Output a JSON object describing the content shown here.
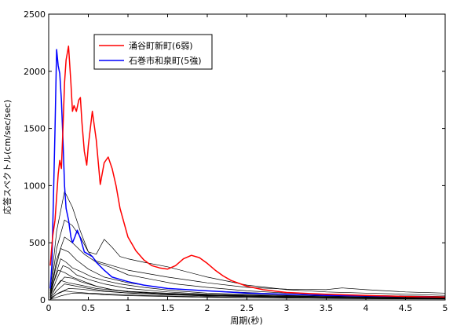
{
  "chart_data": {
    "type": "line",
    "xlabel": "周期(秒)",
    "ylabel": "応答スペクトル(cm/sec/sec)",
    "xlim": [
      0,
      5
    ],
    "ylim": [
      0,
      2500
    ],
    "xticks": [
      0,
      0.5,
      1,
      1.5,
      2,
      2.5,
      3,
      3.5,
      4,
      4.5,
      5
    ],
    "xtick_labels": [
      "0",
      "0.5",
      "1",
      "1.5",
      "2",
      "2.5",
      "3",
      "3.5",
      "4",
      "4.5",
      "5"
    ],
    "yticks": [
      0,
      500,
      1000,
      1500,
      2000,
      2500
    ],
    "ytick_labels": [
      "0",
      "500",
      "1000",
      "1500",
      "2000",
      "2500"
    ],
    "legend_position": "top-left",
    "grid": false,
    "series": [
      {
        "name": "涌谷町新町(6弱)",
        "color": "#ff0000",
        "x": [
          0.02,
          0.05,
          0.08,
          0.1,
          0.12,
          0.14,
          0.16,
          0.18,
          0.2,
          0.22,
          0.25,
          0.28,
          0.3,
          0.32,
          0.35,
          0.38,
          0.4,
          0.42,
          0.45,
          0.48,
          0.5,
          0.55,
          0.6,
          0.65,
          0.7,
          0.75,
          0.8,
          0.85,
          0.9,
          1.0,
          1.1,
          1.2,
          1.3,
          1.4,
          1.5,
          1.6,
          1.7,
          1.8,
          1.9,
          2.0,
          2.1,
          2.2,
          2.3,
          2.5,
          2.7,
          3.0,
          3.5,
          4.0,
          4.5,
          5.0
        ],
        "y": [
          300,
          550,
          700,
          900,
          1100,
          1220,
          1150,
          1500,
          1900,
          2100,
          2220,
          1900,
          1650,
          1700,
          1650,
          1750,
          1770,
          1550,
          1300,
          1180,
          1350,
          1650,
          1400,
          1010,
          1200,
          1250,
          1150,
          1000,
          800,
          550,
          430,
          350,
          300,
          280,
          270,
          300,
          360,
          390,
          370,
          320,
          260,
          210,
          170,
          120,
          90,
          65,
          50,
          40,
          30,
          25
        ]
      },
      {
        "name": "石巻市和泉町(5強)",
        "color": "#0000ff",
        "x": [
          0.02,
          0.04,
          0.06,
          0.08,
          0.1,
          0.12,
          0.14,
          0.16,
          0.18,
          0.2,
          0.22,
          0.25,
          0.28,
          0.3,
          0.33,
          0.36,
          0.4,
          0.45,
          0.5,
          0.55,
          0.6,
          0.7,
          0.8,
          0.9,
          1.0,
          1.2,
          1.5,
          2.0,
          2.5,
          3.0,
          3.5,
          4.0,
          4.5,
          5.0
        ],
        "y": [
          100,
          300,
          900,
          1500,
          2190,
          2050,
          1980,
          1750,
          1400,
          1000,
          800,
          700,
          550,
          500,
          550,
          610,
          540,
          420,
          400,
          380,
          330,
          260,
          200,
          180,
          160,
          130,
          100,
          80,
          60,
          50,
          40,
          35,
          30,
          25
        ]
      },
      {
        "name": "",
        "color": "#000000",
        "x": [
          0.02,
          0.1,
          0.2,
          0.3,
          0.4,
          0.5,
          0.6,
          0.7,
          0.8,
          0.9,
          1.0,
          1.2,
          1.5,
          2.0,
          2.5,
          3.0,
          3.5,
          4.0,
          4.5,
          5.0
        ],
        "y": [
          80,
          600,
          950,
          810,
          600,
          420,
          400,
          530,
          460,
          380,
          360,
          330,
          290,
          200,
          130,
          90,
          70,
          60,
          50,
          40
        ]
      },
      {
        "name": "",
        "color": "#000000",
        "x": [
          0.02,
          0.1,
          0.2,
          0.3,
          0.4,
          0.5,
          0.6,
          0.8,
          1.0,
          1.5,
          2.0,
          2.5,
          3.0,
          3.5,
          3.7,
          4.0,
          4.5,
          5.0
        ],
        "y": [
          60,
          450,
          700,
          650,
          550,
          420,
          340,
          300,
          260,
          200,
          150,
          110,
          95,
          90,
          105,
          90,
          70,
          60
        ]
      },
      {
        "name": "",
        "color": "#000000",
        "x": [
          0.02,
          0.1,
          0.2,
          0.3,
          0.45,
          0.6,
          0.8,
          1.0,
          1.3,
          1.6,
          2.0,
          2.5,
          3.0,
          4.0,
          5.0
        ],
        "y": [
          50,
          350,
          550,
          500,
          400,
          330,
          280,
          220,
          180,
          140,
          110,
          80,
          60,
          40,
          30
        ]
      },
      {
        "name": "",
        "color": "#000000",
        "x": [
          0.02,
          0.08,
          0.15,
          0.25,
          0.35,
          0.5,
          0.7,
          1.0,
          1.5,
          2.0,
          3.0,
          4.0,
          5.0
        ],
        "y": [
          40,
          250,
          450,
          420,
          350,
          270,
          200,
          150,
          100,
          80,
          50,
          35,
          25
        ]
      },
      {
        "name": "",
        "color": "#000000",
        "x": [
          0.02,
          0.08,
          0.15,
          0.22,
          0.3,
          0.4,
          0.55,
          0.7,
          0.9,
          1.2,
          1.6,
          2.0,
          3.0,
          4.0,
          5.0
        ],
        "y": [
          30,
          200,
          360,
          330,
          280,
          250,
          200,
          170,
          140,
          110,
          80,
          60,
          40,
          30,
          20
        ]
      },
      {
        "name": "",
        "color": "#000000",
        "x": [
          0.02,
          0.1,
          0.18,
          0.25,
          0.35,
          0.5,
          0.7,
          1.0,
          1.5,
          2.0,
          3.0,
          4.0,
          5.0
        ],
        "y": [
          30,
          180,
          300,
          280,
          220,
          180,
          140,
          100,
          70,
          50,
          35,
          25,
          20
        ]
      },
      {
        "name": "",
        "color": "#000000",
        "x": [
          0.02,
          0.06,
          0.12,
          0.2,
          0.3,
          0.45,
          0.6,
          0.8,
          1.0,
          1.5,
          2.0,
          3.0,
          4.0,
          5.0
        ],
        "y": [
          20,
          150,
          260,
          240,
          200,
          160,
          120,
          90,
          70,
          50,
          40,
          30,
          20,
          15
        ]
      },
      {
        "name": "",
        "color": "#000000",
        "x": [
          0.02,
          0.1,
          0.2,
          0.3,
          0.4,
          0.6,
          0.8,
          1.0,
          1.5,
          2.0,
          3.0,
          4.0,
          5.0
        ],
        "y": [
          20,
          120,
          200,
          190,
          160,
          120,
          90,
          75,
          60,
          45,
          30,
          20,
          15
        ]
      },
      {
        "name": "",
        "color": "#000000",
        "x": [
          0.02,
          0.08,
          0.15,
          0.25,
          0.4,
          0.6,
          0.9,
          1.3,
          1.8,
          2.5,
          3.5,
          5.0
        ],
        "y": [
          15,
          100,
          170,
          150,
          130,
          100,
          80,
          60,
          45,
          35,
          25,
          15
        ]
      },
      {
        "name": "",
        "color": "#000000",
        "x": [
          0.02,
          0.1,
          0.2,
          0.35,
          0.5,
          0.7,
          1.0,
          1.5,
          2.0,
          3.0,
          4.0,
          5.0
        ],
        "y": [
          10,
          80,
          140,
          120,
          100,
          80,
          60,
          45,
          35,
          25,
          18,
          12
        ]
      },
      {
        "name": "",
        "color": "#000000",
        "x": [
          0.02,
          0.12,
          0.25,
          0.4,
          0.6,
          0.9,
          1.2,
          1.6,
          2.0,
          3.0,
          4.0,
          5.0
        ],
        "y": [
          10,
          60,
          100,
          95,
          80,
          65,
          55,
          45,
          35,
          25,
          18,
          12
        ]
      },
      {
        "name": "",
        "color": "#000000",
        "x": [
          0.02,
          0.1,
          0.2,
          0.3,
          0.5,
          0.8,
          1.2,
          1.8,
          2.5,
          3.5,
          5.0
        ],
        "y": [
          5,
          50,
          80,
          70,
          60,
          50,
          40,
          30,
          22,
          15,
          10
        ]
      },
      {
        "name": "",
        "color": "#000000",
        "x": [
          0.02,
          0.15,
          0.3,
          0.5,
          0.7,
          1.0,
          1.5,
          2.0,
          3.0,
          4.0,
          5.0
        ],
        "y": [
          5,
          35,
          60,
          55,
          45,
          38,
          30,
          22,
          15,
          10,
          8
        ]
      }
    ]
  }
}
